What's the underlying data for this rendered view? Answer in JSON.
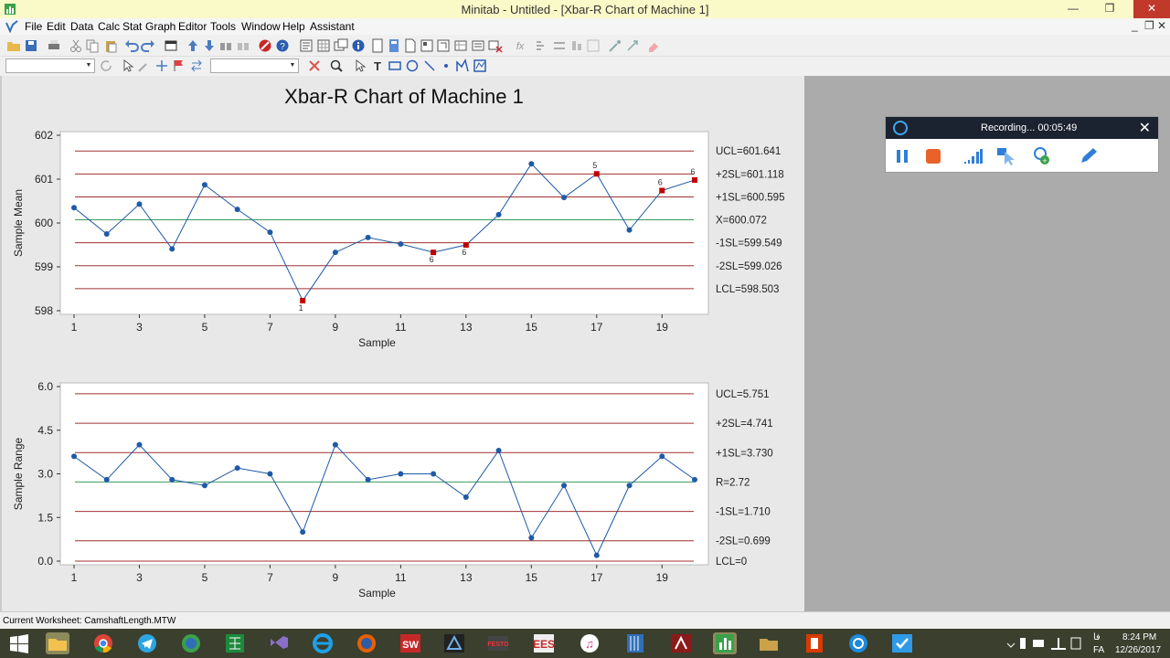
{
  "window": {
    "title": "Minitab - Untitled - [Xbar-R Chart of Machine 1]",
    "minimize": "—",
    "restore": "❐",
    "close": "✕"
  },
  "menu": [
    "File",
    "Edit",
    "Data",
    "Calc",
    "Stat",
    "Graph",
    "Editor",
    "Tools",
    "Window",
    "Help",
    "Assistant"
  ],
  "mdi_controls": {
    "minimize": "_",
    "restore": "❐",
    "close": "✕"
  },
  "chart_data": [
    {
      "type": "line",
      "title": "Xbar-R Chart of Machine 1",
      "xlabel": "Sample",
      "ylabel": "Sample Mean",
      "x": [
        1,
        2,
        3,
        4,
        5,
        6,
        7,
        8,
        9,
        10,
        11,
        12,
        13,
        14,
        15,
        16,
        17,
        18,
        19,
        20
      ],
      "values": [
        600.35,
        599.75,
        600.43,
        599.41,
        600.87,
        600.31,
        599.79,
        598.23,
        599.33,
        599.67,
        599.52,
        599.33,
        599.5,
        600.19,
        601.35,
        600.58,
        601.12,
        599.84,
        600.74,
        600.98
      ],
      "flagged": [
        {
          "x": 8,
          "label": "1"
        },
        {
          "x": 12,
          "label": "6"
        },
        {
          "x": 13,
          "label": "6"
        },
        {
          "x": 17,
          "label": "5"
        },
        {
          "x": 19,
          "label": "6"
        },
        {
          "x": 20,
          "label": "6"
        }
      ],
      "ylim": [
        598,
        602
      ],
      "yticks": [
        598,
        599,
        600,
        601,
        602
      ],
      "xticks": [
        1,
        3,
        5,
        7,
        9,
        11,
        13,
        15,
        17,
        19
      ],
      "limits": [
        {
          "value": 601.641,
          "kind": "control",
          "label": "UCL=601.641"
        },
        {
          "value": 601.118,
          "kind": "sigma",
          "label": "+2SL=601.118"
        },
        {
          "value": 600.595,
          "kind": "sigma",
          "label": "+1SL=600.595"
        },
        {
          "value": 600.072,
          "kind": "center",
          "label": "X=600.072"
        },
        {
          "value": 599.549,
          "kind": "sigma",
          "label": "-1SL=599.549"
        },
        {
          "value": 599.026,
          "kind": "sigma",
          "label": "-2SL=599.026"
        },
        {
          "value": 598.503,
          "kind": "control",
          "label": "LCL=598.503"
        }
      ]
    },
    {
      "type": "line",
      "xlabel": "Sample",
      "ylabel": "Sample Range",
      "x": [
        1,
        2,
        3,
        4,
        5,
        6,
        7,
        8,
        9,
        10,
        11,
        12,
        13,
        14,
        15,
        16,
        17,
        18,
        19,
        20
      ],
      "values": [
        3.6,
        2.8,
        4.0,
        2.8,
        2.6,
        3.2,
        3.0,
        1.0,
        4.0,
        2.8,
        3.0,
        3.0,
        2.2,
        3.8,
        0.8,
        2.6,
        0.2,
        2.6,
        3.6,
        2.8
      ],
      "ylim": [
        0,
        6
      ],
      "yticks": [
        "0.0",
        "1.5",
        "3.0",
        "4.5",
        "6.0"
      ],
      "xticks": [
        1,
        3,
        5,
        7,
        9,
        11,
        13,
        15,
        17,
        19
      ],
      "limits": [
        {
          "value": 5.751,
          "kind": "control",
          "label": "UCL=5.751"
        },
        {
          "value": 4.741,
          "kind": "sigma",
          "label": "+2SL=4.741"
        },
        {
          "value": 3.73,
          "kind": "sigma",
          "label": "+1SL=3.730"
        },
        {
          "value": 2.72,
          "kind": "center",
          "label": "R=2.72"
        },
        {
          "value": 1.71,
          "kind": "sigma",
          "label": "-1SL=1.710"
        },
        {
          "value": 0.699,
          "kind": "sigma",
          "label": "-2SL=0.699"
        },
        {
          "value": 0,
          "kind": "control",
          "label": "LCL=0"
        }
      ]
    }
  ],
  "recorder": {
    "status": "Recording... 00:05:49",
    "close": "✕"
  },
  "statusbar": {
    "text": "Current Worksheet: CamshaftLength.MTW"
  },
  "tray": {
    "time": "8:24 PM",
    "date": "12/26/2017",
    "lang": "FA"
  },
  "colors": {
    "series": "#1f5aa6",
    "flag": "#c00000",
    "limit": "#a03030",
    "center": "#3a9a5a"
  }
}
